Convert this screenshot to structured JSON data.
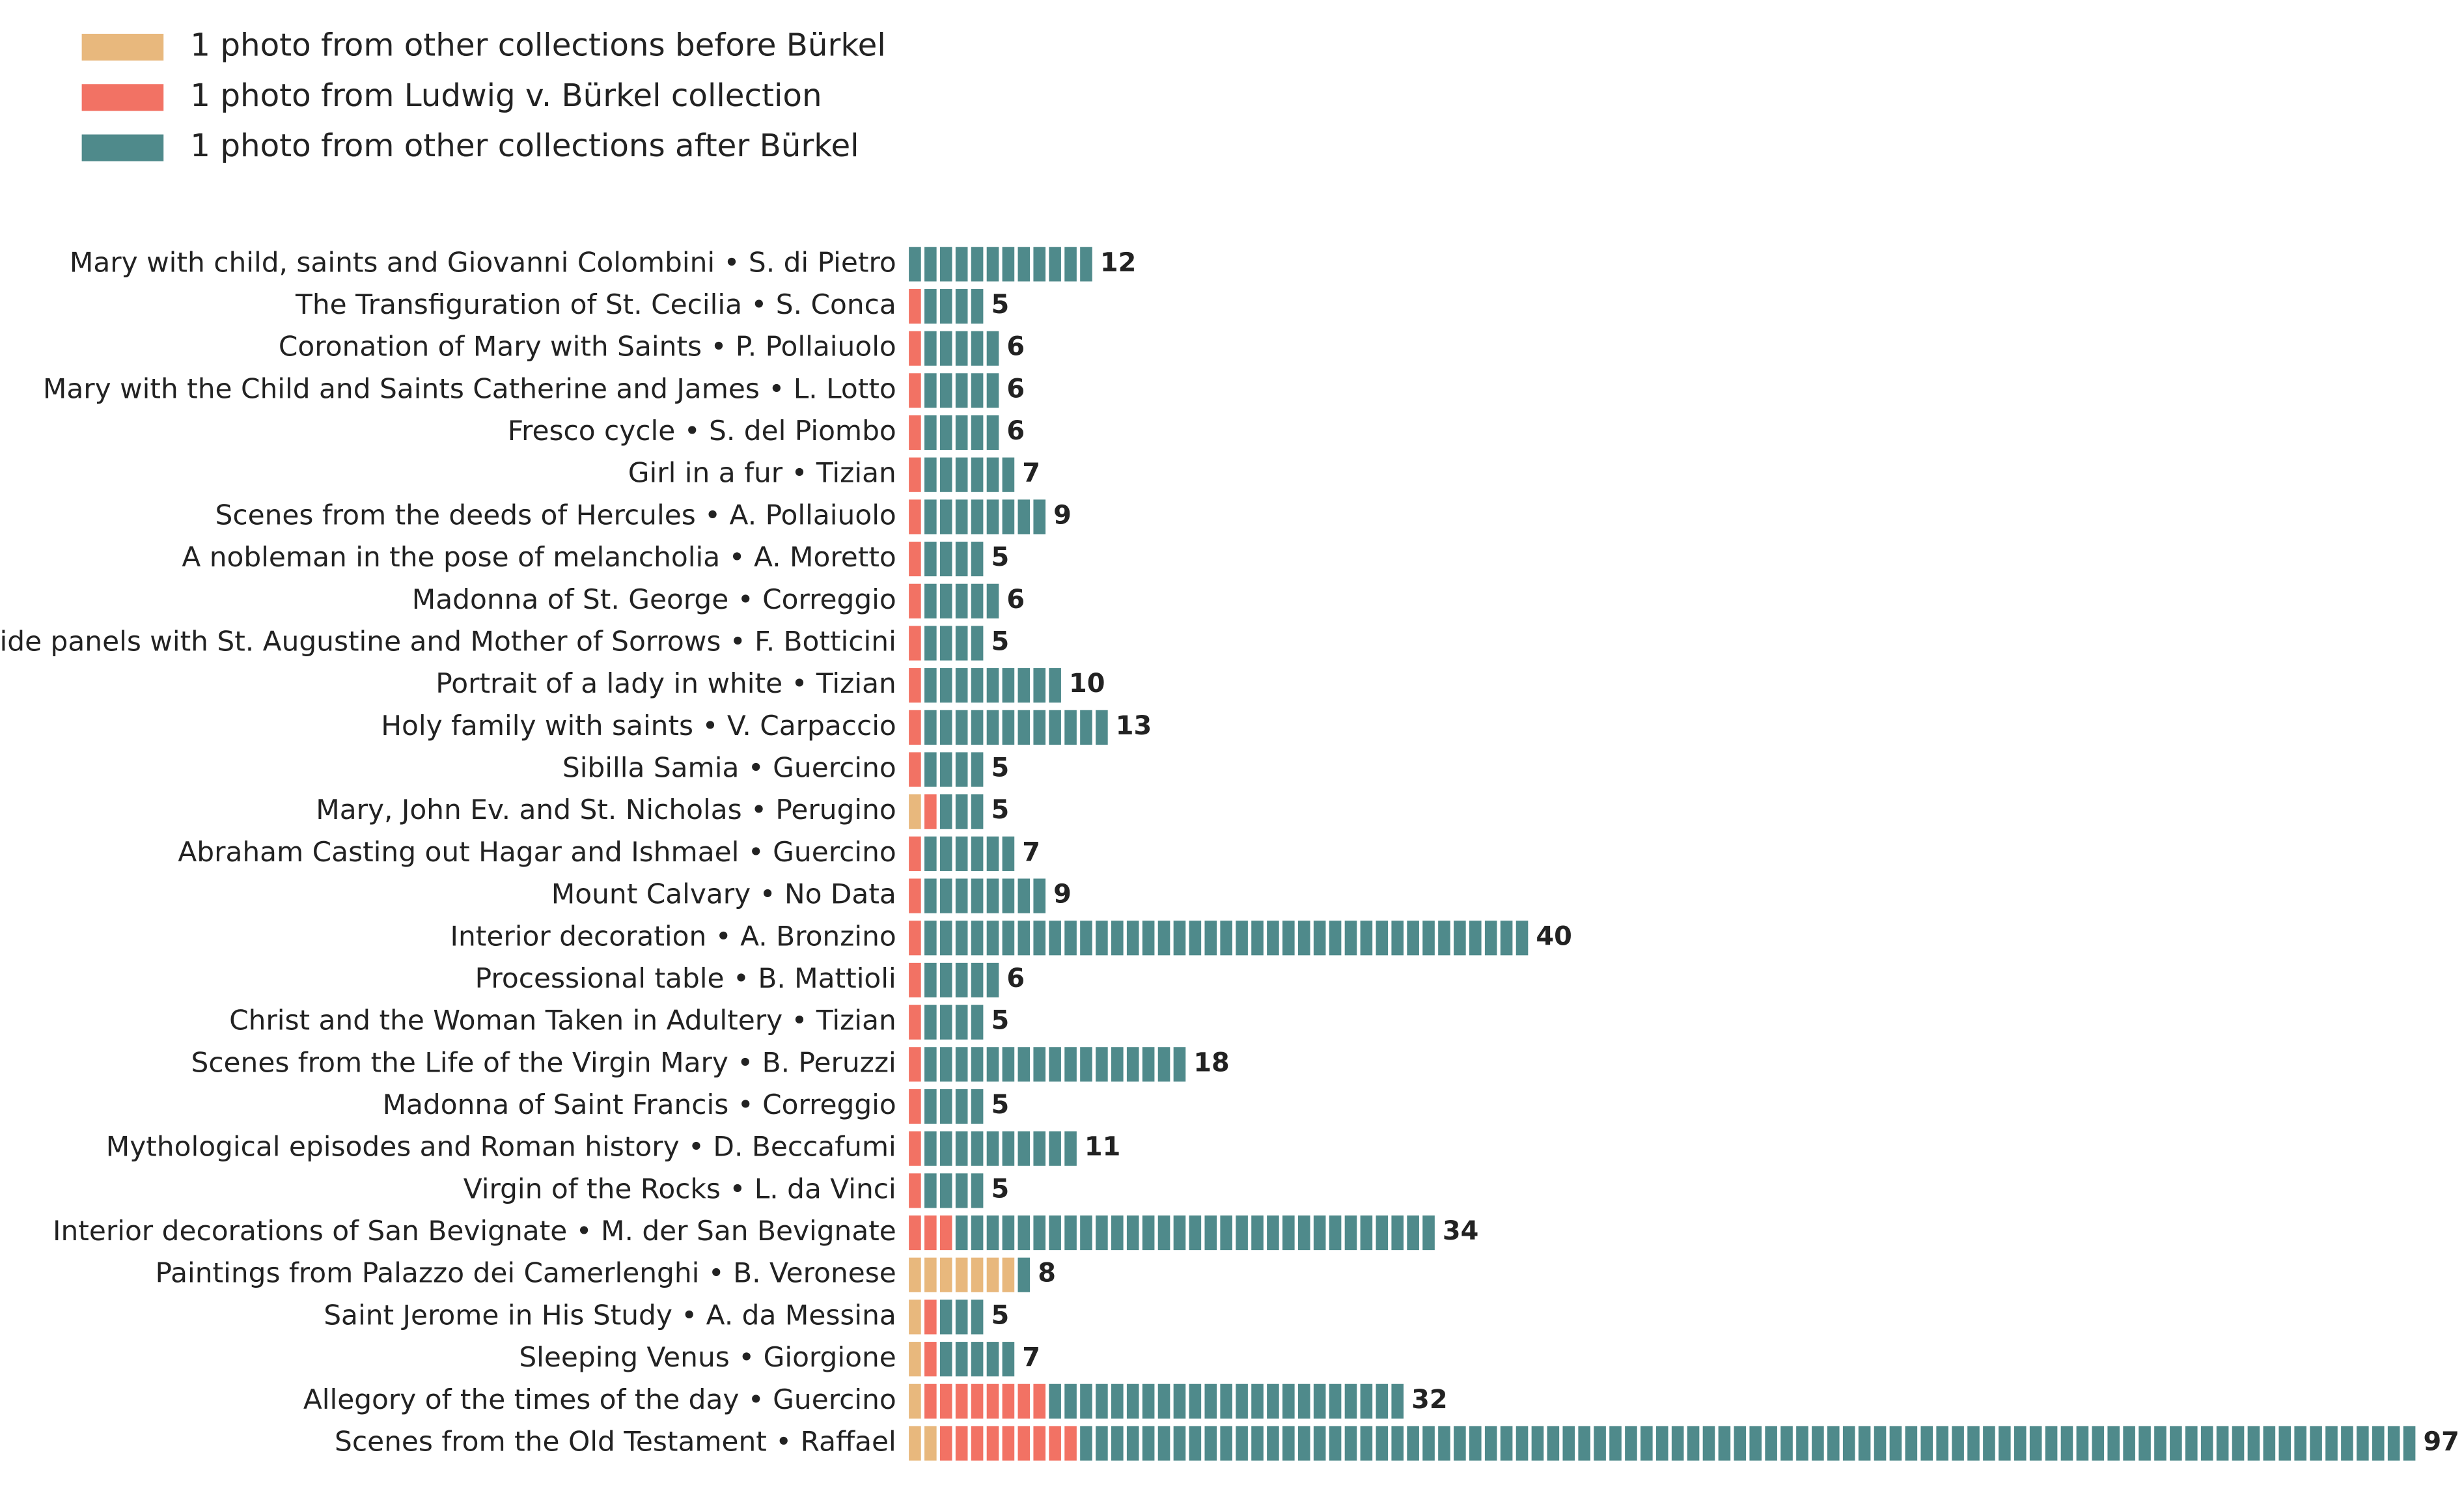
{
  "chart_data": {
    "type": "bar",
    "layout": "horizontal-unit-stacked",
    "title": "",
    "xlabel": "",
    "ylabel": "",
    "grid": false,
    "legend_position": "top-left",
    "legend": [
      {
        "key": "before",
        "label": "1 photo from other collections before Bürkel",
        "color": "#e8b87d"
      },
      {
        "key": "burkel",
        "label": "1 photo from Ludwig v. Bürkel collection",
        "color": "#f27264"
      },
      {
        "key": "after",
        "label": "1 photo from other collections after Bürkel",
        "color": "#4f8a8b"
      }
    ],
    "rows": [
      {
        "label": "Mary with child, saints and Giovanni Colombini • S. di Pietro",
        "before": 0,
        "burkel": 0,
        "after": 12,
        "total": 12
      },
      {
        "label": "The Transfiguration of St. Cecilia • S. Conca",
        "before": 0,
        "burkel": 1,
        "after": 4,
        "total": 5
      },
      {
        "label": "Coronation of Mary with Saints • P. Pollaiuolo",
        "before": 0,
        "burkel": 1,
        "after": 5,
        "total": 6
      },
      {
        "label": "Mary with the Child and Saints Catherine and James • L. Lotto",
        "before": 0,
        "burkel": 1,
        "after": 5,
        "total": 6
      },
      {
        "label": "Fresco cycle • S. del Piombo",
        "before": 0,
        "burkel": 1,
        "after": 5,
        "total": 6
      },
      {
        "label": "Girl in a fur • Tizian",
        "before": 0,
        "burkel": 1,
        "after": 6,
        "total": 7
      },
      {
        "label": "Scenes from the deeds of Hercules • A. Pollaiuolo",
        "before": 0,
        "burkel": 1,
        "after": 8,
        "total": 9
      },
      {
        "label": "A nobleman in the pose of melancholia • A. Moretto",
        "before": 0,
        "burkel": 1,
        "after": 4,
        "total": 5
      },
      {
        "label": "Madonna of St. George • Correggio",
        "before": 0,
        "burkel": 1,
        "after": 5,
        "total": 6
      },
      {
        "label": "Side panels with St. Augustine and Mother of Sorrows • F. Botticini",
        "before": 0,
        "burkel": 1,
        "after": 4,
        "total": 5
      },
      {
        "label": "Portrait of a lady in white • Tizian",
        "before": 0,
        "burkel": 1,
        "after": 9,
        "total": 10
      },
      {
        "label": "Holy family with saints • V. Carpaccio",
        "before": 0,
        "burkel": 1,
        "after": 12,
        "total": 13
      },
      {
        "label": "Sibilla Samia • Guercino",
        "before": 0,
        "burkel": 1,
        "after": 4,
        "total": 5
      },
      {
        "label": "Mary, John Ev. and St. Nicholas • Perugino",
        "before": 1,
        "burkel": 1,
        "after": 3,
        "total": 5
      },
      {
        "label": "Abraham Casting out Hagar and Ishmael • Guercino",
        "before": 0,
        "burkel": 1,
        "after": 6,
        "total": 7
      },
      {
        "label": "Mount Calvary • No Data",
        "before": 0,
        "burkel": 1,
        "after": 8,
        "total": 9
      },
      {
        "label": "Interior decoration • A. Bronzino",
        "before": 0,
        "burkel": 1,
        "after": 39,
        "total": 40
      },
      {
        "label": "Processional table • B. Mattioli",
        "before": 0,
        "burkel": 1,
        "after": 5,
        "total": 6
      },
      {
        "label": "Christ and the Woman Taken in Adultery • Tizian",
        "before": 0,
        "burkel": 1,
        "after": 4,
        "total": 5
      },
      {
        "label": "Scenes from the Life of the Virgin Mary • B. Peruzzi",
        "before": 0,
        "burkel": 1,
        "after": 17,
        "total": 18
      },
      {
        "label": "Madonna of Saint Francis • Correggio",
        "before": 0,
        "burkel": 1,
        "after": 4,
        "total": 5
      },
      {
        "label": "Mythological episodes and Roman history • D. Beccafumi",
        "before": 0,
        "burkel": 1,
        "after": 10,
        "total": 11
      },
      {
        "label": "Virgin of the Rocks • L. da Vinci",
        "before": 0,
        "burkel": 1,
        "after": 4,
        "total": 5
      },
      {
        "label": "Interior decorations of San Bevignate • M. der San Bevignate",
        "before": 0,
        "burkel": 3,
        "after": 31,
        "total": 34
      },
      {
        "label": "Paintings from Palazzo dei Camerlenghi • B. Veronese",
        "before": 7,
        "burkel": 0,
        "after": 1,
        "total": 8
      },
      {
        "label": "Saint Jerome in His Study • A. da Messina",
        "before": 1,
        "burkel": 1,
        "after": 3,
        "total": 5
      },
      {
        "label": "Sleeping Venus • Giorgione",
        "before": 1,
        "burkel": 1,
        "after": 5,
        "total": 7
      },
      {
        "label": "Allegory of the times of the day • Guercino",
        "before": 1,
        "burkel": 8,
        "after": 23,
        "total": 32
      },
      {
        "label": "Scenes from the Old Testament • Raffael",
        "before": 2,
        "burkel": 9,
        "after": 86,
        "total": 97
      }
    ]
  }
}
